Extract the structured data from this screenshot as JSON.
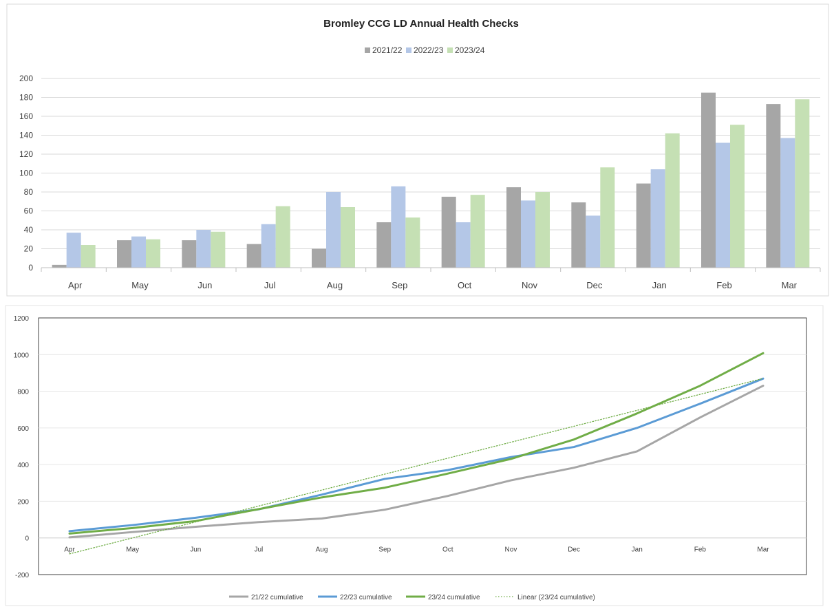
{
  "chart_data": [
    {
      "type": "bar",
      "title": "Bromley CCG LD Annual Health Checks",
      "categories": [
        "Apr",
        "May",
        "Jun",
        "Jul",
        "Aug",
        "Sep",
        "Oct",
        "Nov",
        "Dec",
        "Jan",
        "Feb",
        "Mar"
      ],
      "series": [
        {
          "name": "2021/22",
          "color": "#a6a6a6",
          "values": [
            3,
            29,
            29,
            25,
            20,
            48,
            75,
            85,
            69,
            89,
            185,
            173
          ]
        },
        {
          "name": "2022/23",
          "color": "#b4c7e7",
          "values": [
            37,
            33,
            40,
            46,
            80,
            86,
            48,
            71,
            55,
            104,
            132,
            137
          ]
        },
        {
          "name": "2023/24",
          "color": "#c5e0b4",
          "values": [
            24,
            30,
            38,
            65,
            64,
            53,
            77,
            80,
            106,
            142,
            151,
            178
          ]
        }
      ],
      "ylim": [
        0,
        200
      ],
      "yticks": [
        0,
        20,
        40,
        60,
        80,
        100,
        120,
        140,
        160,
        180,
        200
      ],
      "legend": "top",
      "grid": true
    },
    {
      "type": "line",
      "title": "",
      "categories": [
        "Apr",
        "May",
        "Jun",
        "Jul",
        "Aug",
        "Sep",
        "Oct",
        "Nov",
        "Dec",
        "Jan",
        "Feb",
        "Mar"
      ],
      "series": [
        {
          "name": "21/22 cumulative",
          "color": "#a6a6a6",
          "style": "solid",
          "values": [
            3,
            32,
            61,
            86,
            106,
            154,
            229,
            314,
            383,
            472,
            657,
            830
          ]
        },
        {
          "name": "22/23 cumulative",
          "color": "#5b9bd5",
          "style": "solid",
          "values": [
            37,
            70,
            110,
            156,
            236,
            322,
            370,
            441,
            496,
            600,
            732,
            869
          ]
        },
        {
          "name": "23/24 cumulative",
          "color": "#70ad47",
          "style": "solid",
          "values": [
            24,
            54,
            92,
            157,
            221,
            274,
            351,
            431,
            537,
            679,
            830,
            1008
          ]
        },
        {
          "name": "Linear (23/24 cumulative)",
          "color": "#70ad47",
          "style": "dotted",
          "values": [
            -87,
            0,
            87,
            174,
            261,
            348,
            435,
            522,
            609,
            696,
            783,
            870
          ]
        }
      ],
      "ylim": [
        -200,
        1200
      ],
      "yticks": [
        -200,
        0,
        200,
        400,
        600,
        800,
        1000,
        1200
      ],
      "legend": "bottom",
      "grid": true
    }
  ]
}
